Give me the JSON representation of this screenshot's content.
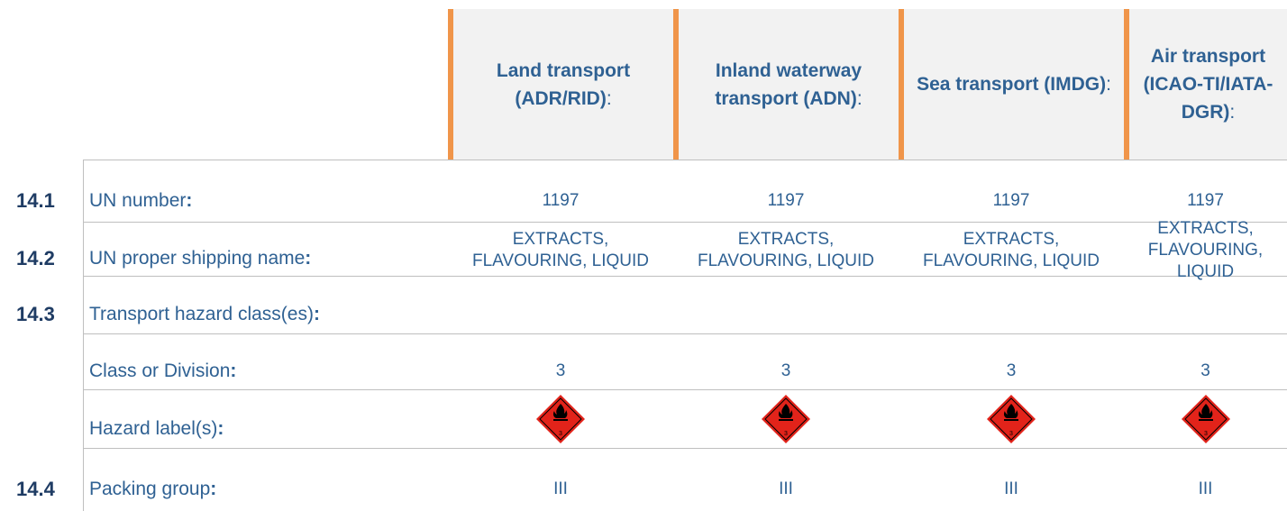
{
  "columns": [
    {
      "title": "Land transport (ADR/RID)",
      "suffix": ":"
    },
    {
      "title": "Inland waterway transport (ADN)",
      "suffix": ":"
    },
    {
      "title": "Sea transport (IMDG)",
      "suffix": ":"
    },
    {
      "title": "Air transport (ICAO-TI/IATA-DGR)",
      "suffix": ":"
    }
  ],
  "rows": [
    {
      "section": "14.1",
      "label": "UN number",
      "colon": ":",
      "cells": [
        "1197",
        "1197",
        "1197",
        "1197"
      ]
    },
    {
      "section": "14.2",
      "label": "UN proper shipping name",
      "colon": ":",
      "cells": [
        "EXTRACTS, FLAVOURING, LIQUID",
        "EXTRACTS, FLAVOURING, LIQUID",
        "EXTRACTS, FLAVOURING, LIQUID",
        "EXTRACTS, FLAVOURING, LIQUID"
      ]
    },
    {
      "section": "14.3",
      "label": "Transport hazard class(es)",
      "colon": ":",
      "cells": []
    },
    {
      "label": "Class or Division",
      "colon": ":",
      "cells": [
        "3",
        "3",
        "3",
        "3"
      ]
    },
    {
      "label": "Hazard label(s)",
      "colon": ":",
      "labels": [
        "3",
        "3",
        "3",
        "3"
      ]
    },
    {
      "section": "14.4",
      "label": "Packing group",
      "colon": ":",
      "cells": [
        "III",
        "III",
        "III",
        "III"
      ]
    }
  ]
}
